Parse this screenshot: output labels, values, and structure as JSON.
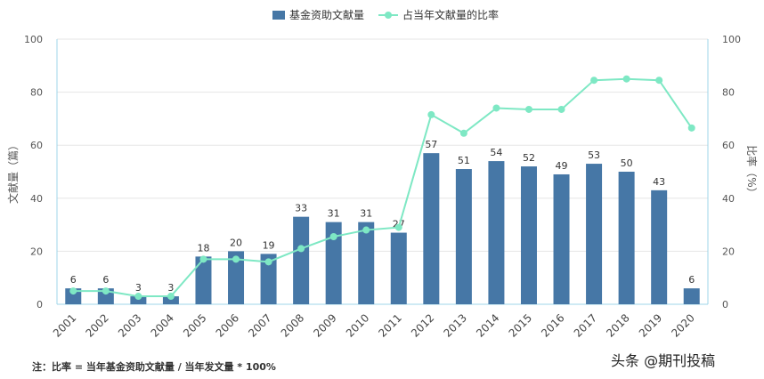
{
  "chart_data": {
    "type": "bar",
    "categories": [
      "2001",
      "2002",
      "2003",
      "2004",
      "2005",
      "2006",
      "2007",
      "2008",
      "2009",
      "2010",
      "2011",
      "2012",
      "2013",
      "2014",
      "2015",
      "2016",
      "2017",
      "2018",
      "2019",
      "2020"
    ],
    "series": [
      {
        "name": "基金资助文献量",
        "type": "bar",
        "axis": "left",
        "color": "#4677a6",
        "values": [
          6,
          6,
          3,
          3,
          18,
          20,
          19,
          33,
          31,
          31,
          27,
          57,
          51,
          54,
          52,
          49,
          53,
          50,
          43,
          6
        ]
      },
      {
        "name": "占当年文献量的比率",
        "type": "line",
        "axis": "right",
        "color": "#7ee8c4",
        "values": [
          5,
          5,
          3,
          3,
          17,
          17,
          16,
          21,
          25.5,
          28,
          29,
          71.5,
          64.5,
          74,
          73.5,
          73.5,
          84.5,
          85,
          84.5,
          66.5
        ]
      }
    ],
    "ylabel_left": "文献量（篇）",
    "ylabel_right": "比率（%）",
    "ylim_left": [
      0,
      100
    ],
    "ylim_right": [
      0,
      100
    ],
    "yticks": [
      0,
      20,
      40,
      60,
      80,
      100
    ],
    "legend_position": "top-center",
    "grid": true
  },
  "note": "注：比率 = 当年基金资助文献量 / 当年发文量 * 100%",
  "watermark": "头条 @期刊投稿"
}
